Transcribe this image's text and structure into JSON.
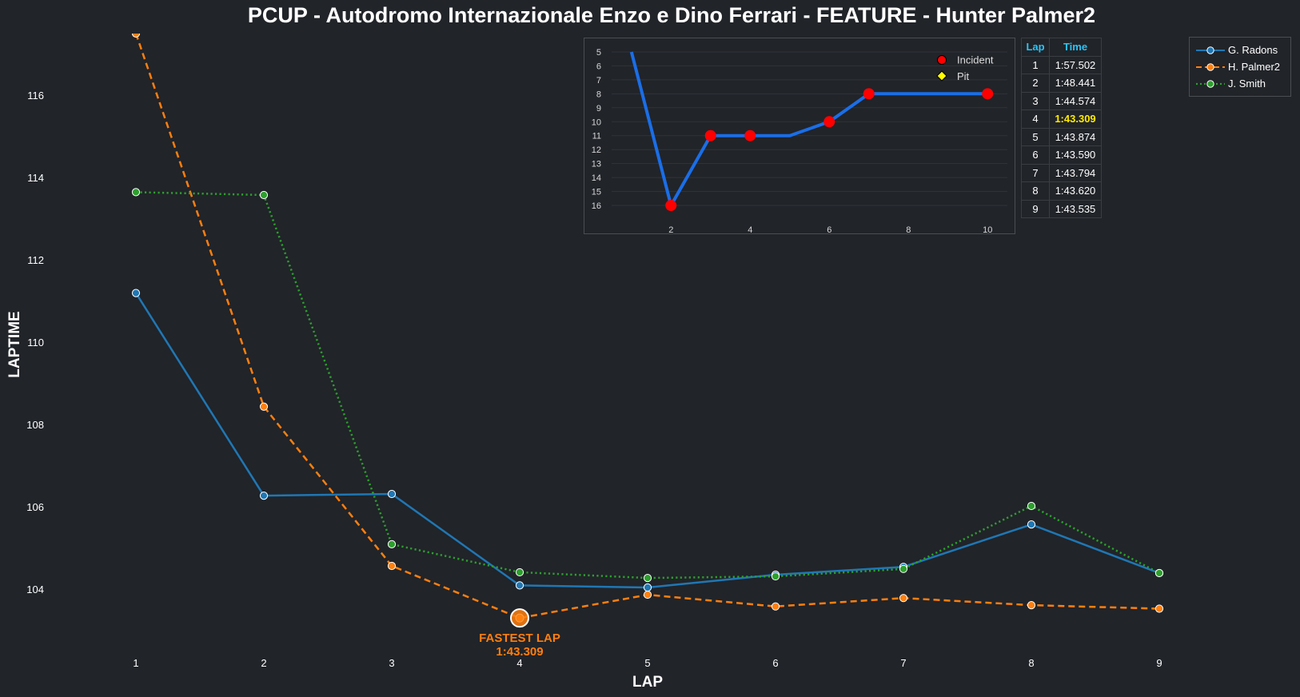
{
  "title": "PCUP - Autodromo Internazionale Enzo e Dino Ferrari - FEATURE - Hunter Palmer2",
  "colors": {
    "background": "#212429",
    "radons": "#1f77b4",
    "palmer": "#ff7f0e",
    "smith": "#2ca02c",
    "inset_line": "#1a6ee8",
    "incident": "#ff0000",
    "pit": "#ffff00",
    "table_header": "#29c5f6",
    "best_time": "#ffea00"
  },
  "chart_data": [
    {
      "type": "line",
      "xlabel": "LAP",
      "ylabel": "LAPTIME",
      "x": [
        1,
        2,
        3,
        4,
        5,
        6,
        7,
        8,
        9
      ],
      "xlim": [
        0.25,
        9.75
      ],
      "ylim": [
        102.4,
        117.5
      ],
      "yticks": [
        104,
        106,
        108,
        110,
        112,
        114,
        116
      ],
      "grid": false,
      "legend_position": "top-right",
      "series": [
        {
          "name": "G. Radons",
          "style": "solid",
          "color": "#1f77b4",
          "values": [
            111.2,
            106.28,
            106.32,
            104.1,
            104.05,
            104.36,
            104.55,
            105.58,
            104.4
          ]
        },
        {
          "name": "H. Palmer2",
          "style": "dashed",
          "color": "#ff7f0e",
          "values": [
            117.502,
            108.441,
            104.574,
            103.309,
            103.874,
            103.59,
            103.794,
            103.62,
            103.535
          ]
        },
        {
          "name": "J. Smith",
          "style": "dotted",
          "color": "#2ca02c",
          "values": [
            113.65,
            113.58,
            105.1,
            104.42,
            104.28,
            104.32,
            104.5,
            106.03,
            104.4
          ]
        }
      ],
      "annotation": {
        "label": "FASTEST LAP",
        "value": "1:43.309",
        "x": 4,
        "y": 103.309
      }
    },
    {
      "type": "line",
      "x": [
        1,
        2,
        3,
        4,
        5,
        6,
        7,
        8,
        9,
        10
      ],
      "values": [
        5,
        16,
        11,
        11,
        11,
        10,
        8,
        8,
        8,
        8
      ],
      "incidents": [
        {
          "x": 2,
          "y": 16
        },
        {
          "x": 3,
          "y": 11
        },
        {
          "x": 4,
          "y": 11
        },
        {
          "x": 6,
          "y": 10
        },
        {
          "x": 7,
          "y": 8
        },
        {
          "x": 10,
          "y": 8
        }
      ],
      "pits": [],
      "xticks": [
        2,
        4,
        6,
        8,
        10
      ],
      "xlim": [
        0.5,
        10.5
      ],
      "yticks": [
        5,
        6,
        7,
        8,
        9,
        10,
        11,
        12,
        13,
        14,
        15,
        16
      ],
      "ylim": [
        4.2,
        16.8
      ],
      "y_inverted": true,
      "grid": true,
      "legend_position": "top-right",
      "legend": [
        {
          "label": "Incident",
          "marker": "circle",
          "color": "#ff0000"
        },
        {
          "label": "Pit",
          "marker": "diamond",
          "color": "#ffff00"
        }
      ]
    }
  ],
  "lap_table": {
    "headers": [
      "Lap",
      "Time"
    ],
    "rows": [
      {
        "lap": "1",
        "time": "1:57.502",
        "best": false
      },
      {
        "lap": "2",
        "time": "1:48.441",
        "best": false
      },
      {
        "lap": "3",
        "time": "1:44.574",
        "best": false
      },
      {
        "lap": "4",
        "time": "1:43.309",
        "best": true
      },
      {
        "lap": "5",
        "time": "1:43.874",
        "best": false
      },
      {
        "lap": "6",
        "time": "1:43.590",
        "best": false
      },
      {
        "lap": "7",
        "time": "1:43.794",
        "best": false
      },
      {
        "lap": "8",
        "time": "1:43.620",
        "best": false
      },
      {
        "lap": "9",
        "time": "1:43.535",
        "best": false
      }
    ]
  }
}
